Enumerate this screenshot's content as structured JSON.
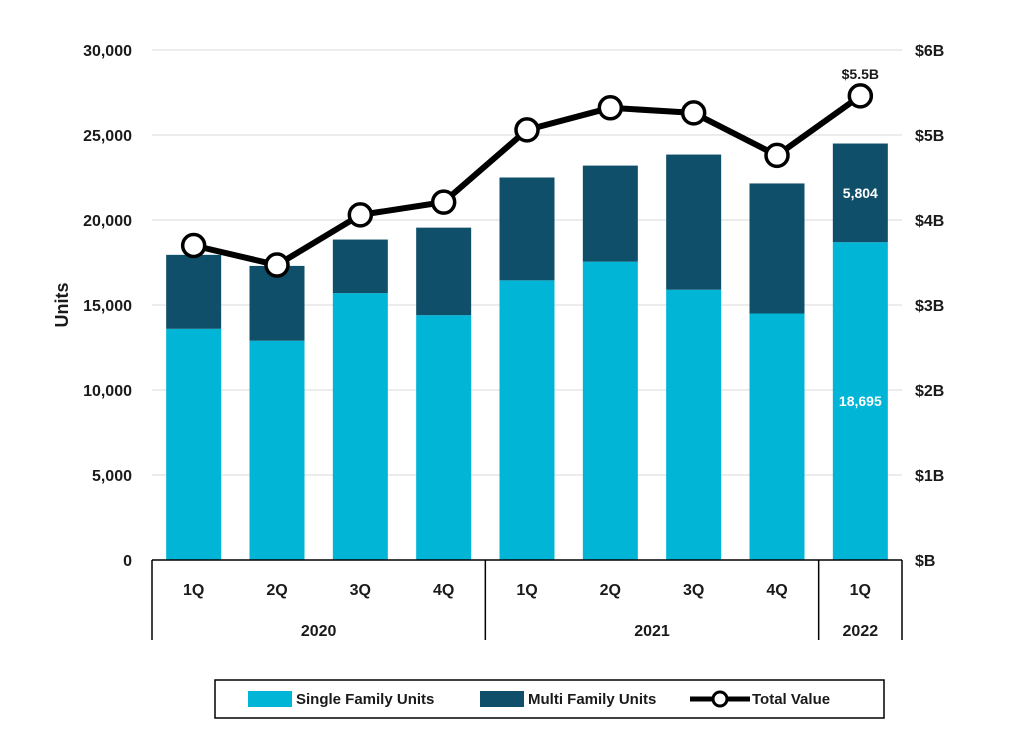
{
  "chart_data": {
    "type": "bar",
    "stacked": true,
    "ylabel": "Units",
    "ylim": [
      0,
      30000
    ],
    "y_ticks": [
      0,
      5000,
      10000,
      15000,
      20000,
      25000,
      30000
    ],
    "y_tick_labels": [
      "0",
      "5,000",
      "10,000",
      "15,000",
      "20,000",
      "25,000",
      "30,000"
    ],
    "y2lim": [
      0,
      6
    ],
    "y2_ticks": [
      0,
      1,
      2,
      3,
      4,
      5,
      6
    ],
    "y2_tick_labels": [
      "$B",
      "$1B",
      "$2B",
      "$3B",
      "$4B",
      "$5B",
      "$6B"
    ],
    "categories": [
      "1Q",
      "2Q",
      "3Q",
      "4Q",
      "1Q",
      "2Q",
      "3Q",
      "4Q",
      "1Q"
    ],
    "groups": [
      {
        "label": "2020",
        "count": 4
      },
      {
        "label": "2021",
        "count": 4
      },
      {
        "label": "2022",
        "count": 1
      }
    ],
    "series": [
      {
        "name": "Single Family Units",
        "type": "bar",
        "axis": "left",
        "color": "#00B5D6",
        "values": [
          13600,
          12900,
          15700,
          14400,
          16450,
          17550,
          15900,
          14500,
          18695
        ]
      },
      {
        "name": "Multi Family Units",
        "type": "bar",
        "axis": "left",
        "color": "#0F4F69",
        "values": [
          4350,
          4400,
          3150,
          5150,
          6050,
          5650,
          7950,
          7650,
          5804
        ]
      },
      {
        "name": "Total Value",
        "type": "line",
        "axis": "right",
        "color": "#000000",
        "values": [
          3.7,
          3.47,
          4.06,
          4.21,
          5.06,
          5.32,
          5.26,
          4.76,
          5.46
        ]
      }
    ],
    "data_labels": [
      {
        "series": 0,
        "index": 8,
        "text": "18,695",
        "color": "#ffffff"
      },
      {
        "series": 1,
        "index": 8,
        "text": "5,804",
        "color": "#ffffff"
      },
      {
        "series": 2,
        "index": 8,
        "text": "$5.5B",
        "color": "#1a1a1a"
      }
    ],
    "legend": {
      "position": "bottom",
      "entries": [
        "Single Family Units",
        "Multi Family Units",
        "Total Value"
      ]
    }
  }
}
